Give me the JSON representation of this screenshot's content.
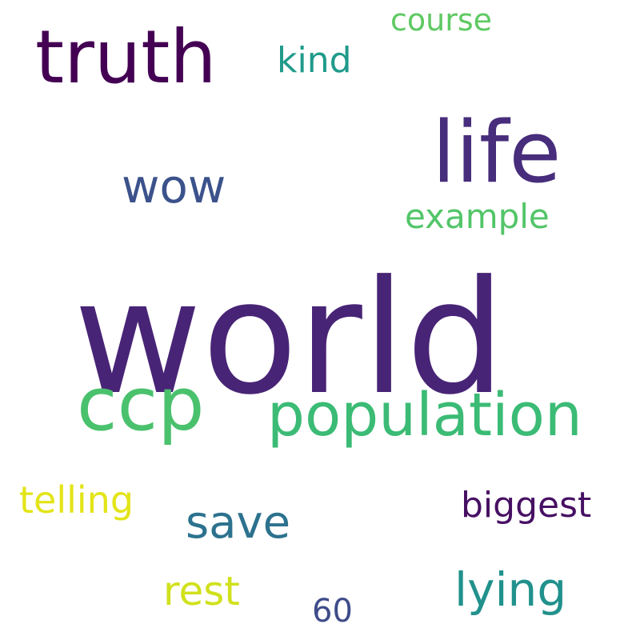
{
  "background": "#ffffff",
  "words": [
    {
      "text": "world",
      "color": "#482476"
    },
    {
      "text": "life",
      "color": "#472d7b"
    },
    {
      "text": "truth",
      "color": "#440154"
    },
    {
      "text": "ccp",
      "color": "#4ac16d"
    },
    {
      "text": "population",
      "color": "#3bbb75"
    },
    {
      "text": "wow",
      "color": "#3b528b"
    },
    {
      "text": "example",
      "color": "#52c569"
    },
    {
      "text": "kind",
      "color": "#1f9a8a"
    },
    {
      "text": "course",
      "color": "#5ec962"
    },
    {
      "text": "save",
      "color": "#2c728e"
    },
    {
      "text": "telling",
      "color": "#e3e418"
    },
    {
      "text": "biggest",
      "color": "#471063"
    },
    {
      "text": "rest",
      "color": "#d0e11c"
    },
    {
      "text": "lying",
      "color": "#21918c"
    },
    {
      "text": "60",
      "color": "#3e4c8a"
    }
  ]
}
